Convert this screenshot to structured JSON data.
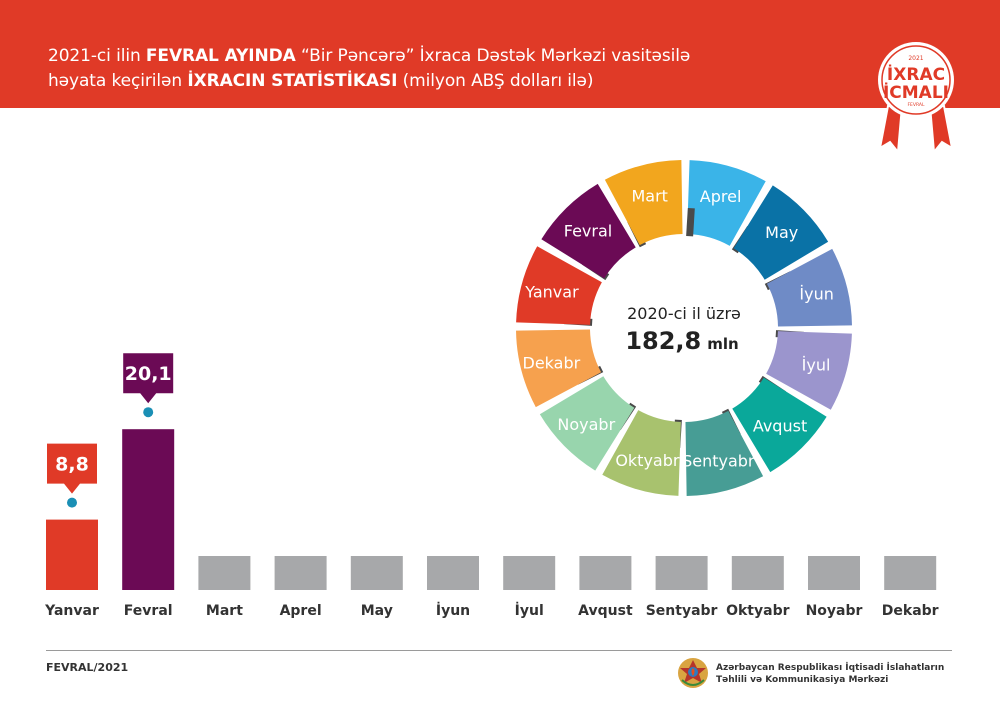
{
  "header": {
    "line1_pre": "2021-ci ilin ",
    "line1_bold": "FEVRAL AYINDA",
    "line1_post": " “Bir Pəncərə” İxraca Dəstək Mərkəzi vasitəsilə",
    "line2_pre": "həyata keçirilən ",
    "line2_bold": "İXRACIN STATİSTİKASI",
    "line2_post": " (milyon ABŞ dolları ilə)",
    "bg_color": "#e03a27"
  },
  "badge": {
    "year": "2021",
    "line1": "İXRAC",
    "line2": "İCMALI",
    "month": "FEVRAL"
  },
  "chart_data": {
    "type": "bar",
    "categories": [
      "Yanvar",
      "Fevral",
      "Mart",
      "Aprel",
      "May",
      "İyun",
      "İyul",
      "Avqust",
      "Sentyabr",
      "Oktyabr",
      "Noyabr",
      "Dekabr"
    ],
    "values": [
      8.8,
      20.1,
      null,
      null,
      null,
      null,
      null,
      null,
      null,
      null,
      null,
      null
    ],
    "value_labels": [
      "8,8",
      "20,1",
      "",
      "",
      "",
      "",
      "",
      "",
      "",
      "",
      "",
      ""
    ],
    "colors": [
      "#e03a27",
      "#6b0a55",
      "#a7a8aa",
      "#a7a8aa",
      "#a7a8aa",
      "#a7a8aa",
      "#a7a8aa",
      "#a7a8aa",
      "#a7a8aa",
      "#a7a8aa",
      "#a7a8aa",
      "#a7a8aa"
    ],
    "placeholder_color": "#a7a8aa",
    "dot_color": "#1a8fb5",
    "ylim": [
      0,
      25
    ],
    "grid": false,
    "legend": "none"
  },
  "wheel": {
    "center_line1": "2020-ci il üzrə",
    "center_line2": "182,8",
    "center_unit": "mln",
    "segments": [
      {
        "label": "Aprel",
        "color": "#3ab4e8"
      },
      {
        "label": "May",
        "color": "#0a72a6"
      },
      {
        "label": "İyun",
        "color": "#6f8bc6"
      },
      {
        "label": "İyul",
        "color": "#9b95cd"
      },
      {
        "label": "Avqust",
        "color": "#0aa89a"
      },
      {
        "label": "Sentyabr",
        "color": "#479d95"
      },
      {
        "label": "Oktyabr",
        "color": "#a8c26e"
      },
      {
        "label": "Noyabr",
        "color": "#98d5ad"
      },
      {
        "label": "Dekabr",
        "color": "#f6a14e"
      },
      {
        "label": "Yanvar",
        "color": "#e03a27"
      },
      {
        "label": "Fevral",
        "color": "#6b0a55"
      },
      {
        "label": "Mart",
        "color": "#f2a61e"
      }
    ],
    "connector_color": "#4a4a4a"
  },
  "footer": {
    "date": "FEVRAL/2021",
    "org_line1": "Azərbaycan Respublikası İqtisadi İslahatların",
    "org_line2": "Təhlili və Kommunikasiya Mərkəzi"
  }
}
